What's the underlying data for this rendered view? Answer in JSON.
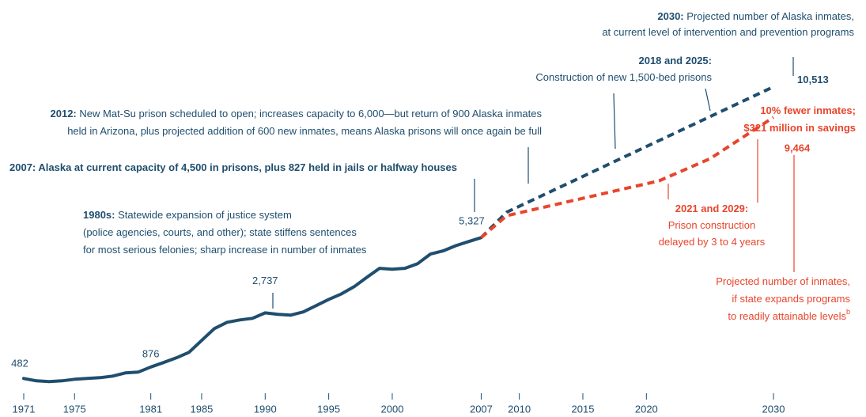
{
  "chart_data": {
    "type": "line",
    "xlim": [
      1971,
      2030
    ],
    "ylim": [
      0,
      13500
    ],
    "xticks": [
      1971,
      1975,
      1981,
      1985,
      1990,
      1995,
      2000,
      2007,
      2010,
      2015,
      2020,
      2030
    ],
    "series": [
      {
        "color": "#1f4e6e",
        "dashed": false,
        "x": [
          1971,
          1972,
          1973,
          1974,
          1975,
          1976,
          1977,
          1978,
          1979,
          1980,
          1981,
          1982,
          1983,
          1984,
          1985,
          1986,
          1987,
          1988,
          1989,
          1990,
          1991,
          1992,
          1993,
          1994,
          1995,
          1996,
          1997,
          1998,
          1999,
          2000,
          2001,
          2002,
          2003,
          2004,
          2005,
          2006,
          2007
        ],
        "values": [
          482,
          400,
          373,
          400,
          455,
          482,
          510,
          563,
          673,
          700,
          876,
          1030,
          1190,
          1380,
          1788,
          2197,
          2414,
          2496,
          2550,
          2737,
          2690,
          2660,
          2770,
          2985,
          3200,
          3390,
          3640,
          3960,
          4270,
          4240,
          4270,
          4430,
          4760,
          4870,
          5050,
          5190,
          5327
        ],
        "value_labels": [
          "482",
          null,
          null,
          null,
          null,
          null,
          null,
          null,
          null,
          null,
          "876",
          null,
          null,
          null,
          null,
          null,
          null,
          null,
          null,
          "2,737",
          null,
          null,
          null,
          null,
          null,
          null,
          null,
          null,
          null,
          null,
          null,
          null,
          null,
          null,
          null,
          null,
          "5,327"
        ]
      },
      {
        "color": "#1f4e6e",
        "dashed": true,
        "x": [
          2007,
          2009,
          2030
        ],
        "values": [
          5327,
          6200,
          10513
        ],
        "value_labels": [
          null,
          null,
          "10,513"
        ]
      },
      {
        "color": "#e8452c",
        "dashed": true,
        "x": [
          2007,
          2009,
          2015,
          2021,
          2025,
          2030
        ],
        "values": [
          5327,
          6080,
          6680,
          7280,
          8040,
          9464
        ],
        "value_labels": [
          null,
          null,
          null,
          null,
          null,
          "9,464"
        ]
      }
    ],
    "annotations": [
      {
        "color": "#1f4e6e",
        "lead": "2030:",
        "lines": [
          "Projected number of Alaska inmates,",
          "at current level of intervention and prevention programs"
        ]
      },
      {
        "color": "#1f4e6e",
        "lead": "2018 and 2025:",
        "lines": [
          "Construction of new 1,500-bed prisons"
        ]
      },
      {
        "color": "#1f4e6e",
        "lead": "2012:",
        "lines": [
          "New Mat-Su prison scheduled to open;  increases capacity to 6,000—but return of 900 Alaska inmates",
          "held in Arizona, plus projected  addition of 600 new inmates, means Alaska prisons will once again be full"
        ]
      },
      {
        "color": "#1f4e6e",
        "lead": "2007: Alaska at current  capacity of 4,500 in prisons, plus  827 held in jails or halfway houses",
        "lines": []
      },
      {
        "color": "#1f4e6e",
        "lead": "1980s:",
        "lines": [
          "Statewide expansion of justice system",
          "(police agencies, courts, and other); state stiffens sentences",
          "for most serious felonies; sharp increase in number of inmates"
        ]
      },
      {
        "color": "#e8452c",
        "lead": "10% fewer inmates;",
        "lines": [
          "$321 million in savings"
        ],
        "bold": true
      },
      {
        "color": "#e8452c",
        "lead": "2021 and 2029:",
        "lines": [
          "Prison construction",
          "delayed by 3 to 4 years"
        ]
      },
      {
        "color": "#e8452c",
        "lead": "",
        "lines": [
          "Projected number of inmates,",
          "if state expands programs",
          "to readily attainable levels"
        ],
        "footnote": "b"
      }
    ]
  }
}
